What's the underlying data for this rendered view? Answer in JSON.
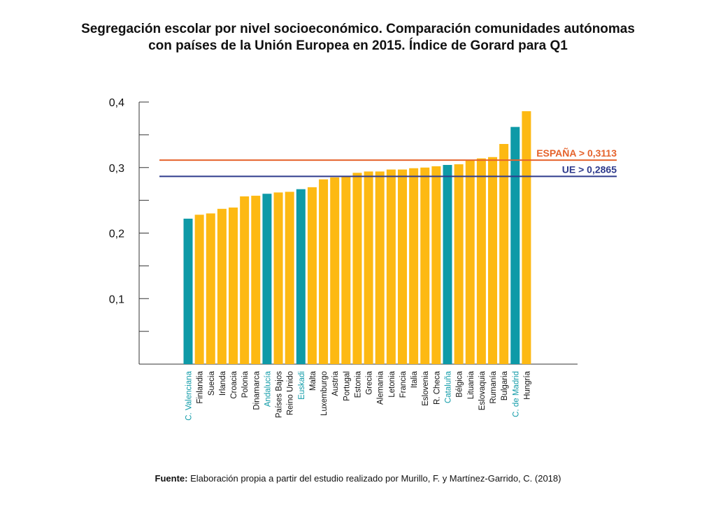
{
  "header": {
    "title_line1": "Segregación escolar por nivel socioeconómico. Comparación comunidades autónomas",
    "title_line2": "con países de la Unión Europea en 2015. Índice de Gorard para Q1"
  },
  "footer": {
    "source_label": "Fuente:",
    "source_text": "Elaboración propia a partir del estudio realizado por Murillo, F. y Martínez-Garrido, C. (2018)"
  },
  "colors": {
    "country_bar": "#FDB913",
    "region_bar": "#0E9AA7",
    "spain_line": "#E5622B",
    "eu_line": "#2E3A8C",
    "axis": "#333333"
  },
  "chart_data": {
    "type": "bar",
    "categories": [
      "C. Valenciana",
      "Finlandia",
      "Suecia",
      "Irlanda",
      "Croacia",
      "Polonia",
      "Dinamarca",
      "Andalucía",
      "Países Bajos",
      "Reino Unido",
      "Euskadi",
      "Malta",
      "Luxemburgo",
      "Austria",
      "Portugal",
      "Estonia",
      "Grecia",
      "Alemania",
      "Letonia",
      "Francia",
      "Italia",
      "Eslovenia",
      "R. Checa",
      "Cataluña",
      "Bélgica",
      "Lituania",
      "Eslovaquia",
      "Rumanía",
      "Bulgaria",
      "C. de Madrid",
      "Hungría"
    ],
    "values": [
      0.222,
      0.228,
      0.23,
      0.237,
      0.239,
      0.256,
      0.257,
      0.26,
      0.262,
      0.263,
      0.267,
      0.27,
      0.282,
      0.285,
      0.287,
      0.292,
      0.294,
      0.294,
      0.297,
      0.297,
      0.299,
      0.3,
      0.302,
      0.304,
      0.305,
      0.312,
      0.314,
      0.316,
      0.336,
      0.362,
      0.386
    ],
    "highlight": [
      "C. Valenciana",
      "Andalucía",
      "Euskadi",
      "Cataluña",
      "C. de Madrid"
    ],
    "reference_lines": [
      {
        "label": "ESPAÑA > 0,3113",
        "value": 0.3113
      },
      {
        "label": "UE > 0,2865",
        "value": 0.2865
      }
    ],
    "yticks": [
      "0,1",
      "0,2",
      "0,3",
      "0,4"
    ],
    "ylim": [
      0,
      0.4
    ],
    "grid": false
  }
}
